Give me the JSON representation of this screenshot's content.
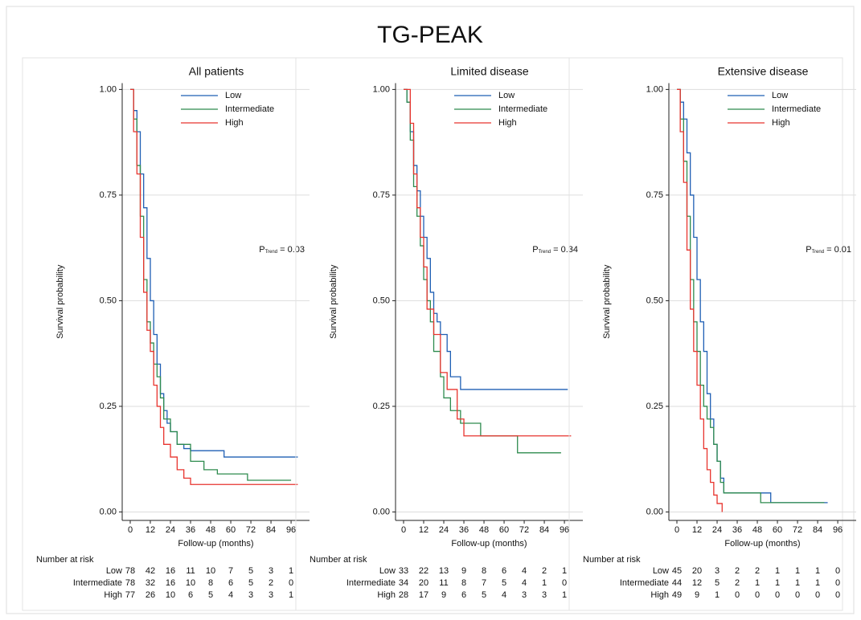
{
  "title": "TG-PEAK",
  "chart_data": [
    {
      "type": "step",
      "title": "All patients",
      "xlabel": "Follow-up (months)",
      "ylabel": "Survival probability",
      "xlim": [
        -4.8,
        107
      ],
      "ylim": [
        -0.02,
        1.015
      ],
      "xticks": [
        0,
        12,
        24,
        36,
        48,
        60,
        72,
        84,
        96
      ],
      "yticks": [
        {
          "value": 0,
          "label": "0.00"
        },
        {
          "value": 0.25,
          "label": "0.25"
        },
        {
          "value": 0.5,
          "label": "0.50"
        },
        {
          "value": 0.75,
          "label": "0.75"
        },
        {
          "value": 1,
          "label": "1.00"
        }
      ],
      "grid": true,
      "legend": "upper right",
      "annotation": {
        "p": "P",
        "sub": "Trend",
        "text": " = 0.03"
      },
      "series": [
        {
          "name": "Low",
          "color": "#1f5fb4",
          "x": [
            0,
            2,
            4,
            6,
            8,
            10,
            12,
            14,
            16,
            18,
            20,
            22,
            24,
            28,
            32,
            36,
            56,
            100
          ],
          "values": [
            1,
            0.95,
            0.9,
            0.8,
            0.72,
            0.6,
            0.5,
            0.42,
            0.35,
            0.28,
            0.24,
            0.21,
            0.19,
            0.16,
            0.15,
            0.145,
            0.13,
            0.13
          ]
        },
        {
          "name": "Intermediate",
          "color": "#2e8b4e",
          "x": [
            0,
            2,
            4,
            6,
            8,
            10,
            12,
            14,
            16,
            18,
            20,
            24,
            28,
            36,
            44,
            52,
            70,
            96
          ],
          "values": [
            1,
            0.93,
            0.82,
            0.7,
            0.55,
            0.45,
            0.4,
            0.35,
            0.32,
            0.27,
            0.22,
            0.19,
            0.16,
            0.12,
            0.1,
            0.09,
            0.075,
            0.075
          ]
        },
        {
          "name": "High",
          "color": "#e8342e",
          "x": [
            0,
            2,
            4,
            6,
            8,
            10,
            12,
            14,
            16,
            18,
            20,
            24,
            28,
            32,
            36,
            100
          ],
          "values": [
            1,
            0.9,
            0.8,
            0.65,
            0.52,
            0.43,
            0.38,
            0.3,
            0.25,
            0.2,
            0.16,
            0.13,
            0.1,
            0.08,
            0.065,
            0.065
          ]
        }
      ],
      "risk": {
        "title": "Number at risk",
        "rows": [
          {
            "name": "Low",
            "values": [
              78,
              42,
              16,
              11,
              10,
              7,
              5,
              3,
              1
            ]
          },
          {
            "name": "Intermediate",
            "values": [
              78,
              32,
              16,
              10,
              8,
              6,
              5,
              2,
              0
            ]
          },
          {
            "name": "High",
            "values": [
              77,
              26,
              10,
              6,
              5,
              4,
              3,
              3,
              1
            ]
          }
        ]
      }
    },
    {
      "type": "step",
      "title": "Limited disease",
      "xlabel": "Follow-up (months)",
      "ylabel": "Survival probability",
      "xlim": [
        -4.8,
        107
      ],
      "ylim": [
        -0.02,
        1.015
      ],
      "xticks": [
        0,
        12,
        24,
        36,
        48,
        60,
        72,
        84,
        96
      ],
      "yticks": [
        {
          "value": 0,
          "label": "0.00"
        },
        {
          "value": 0.25,
          "label": "0.25"
        },
        {
          "value": 0.5,
          "label": "0.50"
        },
        {
          "value": 0.75,
          "label": "0.75"
        },
        {
          "value": 1,
          "label": "1.00"
        }
      ],
      "grid": true,
      "legend": "upper right",
      "annotation": {
        "p": "P",
        "sub": "Trend",
        "text": " = 0.34"
      },
      "series": [
        {
          "name": "Low",
          "color": "#1f5fb4",
          "x": [
            0,
            2,
            4,
            6,
            8,
            10,
            12,
            14,
            16,
            18,
            20,
            22,
            26,
            28,
            34,
            98
          ],
          "values": [
            1,
            0.97,
            0.9,
            0.82,
            0.76,
            0.7,
            0.65,
            0.6,
            0.52,
            0.47,
            0.45,
            0.42,
            0.38,
            0.32,
            0.29,
            0.29
          ]
        },
        {
          "name": "Intermediate",
          "color": "#2e8b4e",
          "x": [
            0,
            2,
            4,
            6,
            8,
            10,
            12,
            14,
            16,
            18,
            22,
            24,
            28,
            34,
            46,
            68,
            94
          ],
          "values": [
            1,
            0.97,
            0.88,
            0.77,
            0.7,
            0.63,
            0.55,
            0.5,
            0.45,
            0.38,
            0.32,
            0.27,
            0.24,
            0.21,
            0.18,
            0.14,
            0.14
          ]
        },
        {
          "name": "High",
          "color": "#e8342e",
          "x": [
            0,
            4,
            6,
            8,
            10,
            12,
            14,
            18,
            22,
            26,
            32,
            36,
            100
          ],
          "values": [
            1,
            0.92,
            0.8,
            0.72,
            0.65,
            0.58,
            0.48,
            0.42,
            0.33,
            0.29,
            0.22,
            0.18,
            0.18
          ]
        }
      ],
      "risk": {
        "title": "Number at risk",
        "rows": [
          {
            "name": "Low",
            "values": [
              33,
              22,
              13,
              9,
              8,
              6,
              4,
              2,
              1
            ]
          },
          {
            "name": "Intermediate",
            "values": [
              34,
              20,
              11,
              8,
              7,
              5,
              4,
              1,
              0
            ]
          },
          {
            "name": "High",
            "values": [
              28,
              17,
              9,
              6,
              5,
              4,
              3,
              3,
              1
            ]
          }
        ]
      }
    },
    {
      "type": "step",
      "title": "Extensive disease",
      "xlabel": "Follow-up (months)",
      "ylabel": "Survival probability",
      "xlim": [
        -4.8,
        107
      ],
      "ylim": [
        -0.02,
        1.015
      ],
      "xticks": [
        0,
        12,
        24,
        36,
        48,
        60,
        72,
        84,
        96
      ],
      "yticks": [
        {
          "value": 0,
          "label": "0.00"
        },
        {
          "value": 0.25,
          "label": "0.25"
        },
        {
          "value": 0.5,
          "label": "0.50"
        },
        {
          "value": 0.75,
          "label": "0.75"
        },
        {
          "value": 1,
          "label": "1.00"
        }
      ],
      "grid": true,
      "legend": "upper right",
      "annotation": {
        "p": "P",
        "sub": "Trend",
        "text": " = 0.01"
      },
      "series": [
        {
          "name": "Low",
          "color": "#1f5fb4",
          "x": [
            0,
            2,
            4,
            6,
            8,
            10,
            12,
            14,
            16,
            18,
            20,
            22,
            24,
            26,
            28,
            54,
            56,
            90
          ],
          "values": [
            1,
            0.97,
            0.93,
            0.85,
            0.75,
            0.65,
            0.55,
            0.45,
            0.38,
            0.28,
            0.22,
            0.16,
            0.12,
            0.08,
            0.045,
            0.045,
            0.022,
            0.022
          ]
        },
        {
          "name": "Intermediate",
          "color": "#2e8b4e",
          "x": [
            0,
            2,
            4,
            6,
            8,
            10,
            12,
            14,
            16,
            18,
            20,
            22,
            24,
            26,
            28,
            48,
            50,
            88
          ],
          "values": [
            1,
            0.93,
            0.83,
            0.7,
            0.55,
            0.45,
            0.38,
            0.3,
            0.25,
            0.22,
            0.2,
            0.16,
            0.12,
            0.07,
            0.045,
            0.045,
            0.022,
            0.022
          ]
        },
        {
          "name": "High",
          "color": "#e8342e",
          "x": [
            0,
            2,
            4,
            6,
            8,
            10,
            12,
            14,
            16,
            18,
            20,
            22,
            24,
            27
          ],
          "values": [
            1,
            0.9,
            0.78,
            0.62,
            0.48,
            0.38,
            0.3,
            0.22,
            0.15,
            0.1,
            0.07,
            0.04,
            0.02,
            0
          ]
        }
      ],
      "risk": {
        "title": "Number at risk",
        "rows": [
          {
            "name": "Low",
            "values": [
              45,
              20,
              3,
              2,
              2,
              1,
              1,
              1,
              0
            ]
          },
          {
            "name": "Intermediate",
            "values": [
              44,
              12,
              5,
              2,
              1,
              1,
              1,
              1,
              0
            ]
          },
          {
            "name": "High",
            "values": [
              49,
              9,
              1,
              0,
              0,
              0,
              0,
              0,
              0
            ]
          }
        ]
      }
    }
  ]
}
